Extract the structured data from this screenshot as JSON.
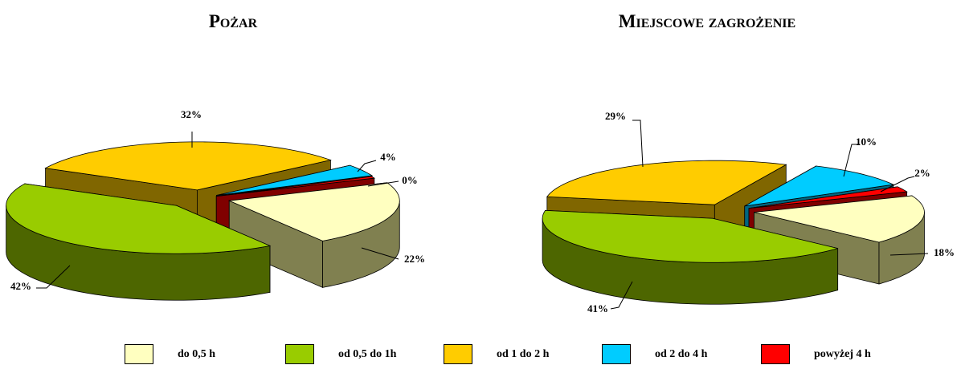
{
  "chart_data": [
    {
      "type": "pie",
      "title": "Pożar",
      "categories": [
        "do 0,5 h",
        "od 0,5 do 1h",
        "od 1 do 2 h",
        "od 2 do 4 h",
        "powyżej 4 h"
      ],
      "values": [
        22,
        42,
        32,
        4,
        0
      ],
      "data_labels": [
        "22%",
        "42%",
        "32%",
        "4%",
        "0%"
      ]
    },
    {
      "type": "pie",
      "title": "Miejscowe zagrożenie",
      "categories": [
        "do 0,5 h",
        "od 0,5 do 1h",
        "od 1 do 2 h",
        "od 2 do 4 h",
        "powyżej 4 h"
      ],
      "values": [
        18,
        41,
        29,
        10,
        2
      ],
      "data_labels": [
        "18%",
        "41%",
        "29%",
        "10%",
        "2%"
      ]
    }
  ],
  "legend": {
    "placement": "bottom",
    "items": [
      {
        "label": "do 0,5 h",
        "color": "#ffffc0"
      },
      {
        "label": "od 0,5 do 1h",
        "color": "#99cc00"
      },
      {
        "label": "od 1 do 2 h",
        "color": "#ffcc00"
      },
      {
        "label": "od 2 do 4 h",
        "color": "#00ccff"
      },
      {
        "label": "powyżej 4 h",
        "color": "#ff0000"
      }
    ]
  },
  "colors": {
    "slice_top": [
      "#ffffc0",
      "#99cc00",
      "#ffcc00",
      "#00ccff",
      "#ff0000"
    ],
    "slice_side": [
      "#808050",
      "#4d6600",
      "#806600",
      "#006680",
      "#800000"
    ]
  }
}
